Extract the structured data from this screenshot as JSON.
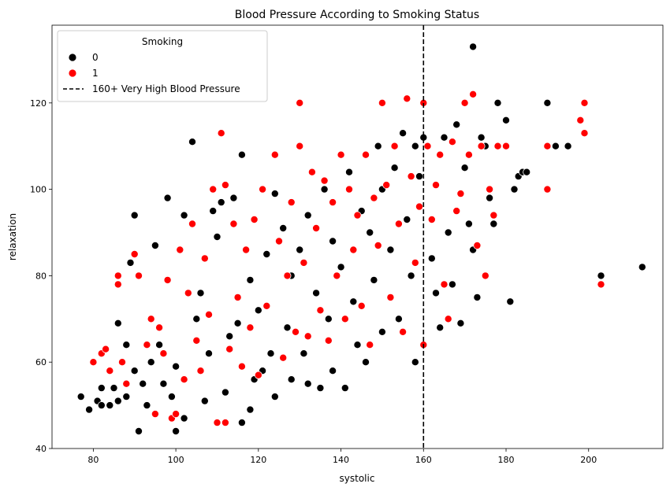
{
  "chart_data": {
    "type": "scatter",
    "title": "Blood Pressure According to Smoking Status",
    "xlabel": "systolic",
    "ylabel": "relaxation",
    "xlim": [
      70,
      218
    ],
    "ylim": [
      40,
      138
    ],
    "xticks": [
      80,
      100,
      120,
      140,
      160,
      180,
      200
    ],
    "yticks": [
      40,
      60,
      80,
      100,
      120
    ],
    "grid": false,
    "legend": {
      "title": "Smoking",
      "placement": "top-left",
      "entries": [
        {
          "label": "0",
          "marker": "circle",
          "color": "#000000"
        },
        {
          "label": "1",
          "marker": "circle",
          "color": "#ff0000"
        },
        {
          "label": "160+ Very High Blood Pressure",
          "marker": "dashed-line",
          "color": "#000000"
        }
      ]
    },
    "reference_line": {
      "axis": "x",
      "value": 160,
      "style": "dashed",
      "color": "#000000",
      "label": "160+ Very High Blood Pressure"
    },
    "series": [
      {
        "name": "0",
        "color": "#000000",
        "points": [
          [
            77,
            52
          ],
          [
            79,
            49
          ],
          [
            81,
            51
          ],
          [
            82,
            50
          ],
          [
            82,
            54
          ],
          [
            84,
            50
          ],
          [
            85,
            54
          ],
          [
            86,
            51
          ],
          [
            86,
            69
          ],
          [
            88,
            52
          ],
          [
            88,
            64
          ],
          [
            89,
            83
          ],
          [
            90,
            94
          ],
          [
            90,
            58
          ],
          [
            91,
            44
          ],
          [
            92,
            55
          ],
          [
            93,
            50
          ],
          [
            94,
            60
          ],
          [
            95,
            87
          ],
          [
            96,
            64
          ],
          [
            97,
            55
          ],
          [
            98,
            98
          ],
          [
            99,
            52
          ],
          [
            100,
            44
          ],
          [
            100,
            59
          ],
          [
            102,
            94
          ],
          [
            102,
            47
          ],
          [
            104,
            111
          ],
          [
            105,
            70
          ],
          [
            106,
            76
          ],
          [
            107,
            51
          ],
          [
            108,
            62
          ],
          [
            109,
            95
          ],
          [
            110,
            89
          ],
          [
            111,
            97
          ],
          [
            112,
            53
          ],
          [
            113,
            66
          ],
          [
            114,
            98
          ],
          [
            115,
            69
          ],
          [
            116,
            108
          ],
          [
            116,
            46
          ],
          [
            118,
            49
          ],
          [
            118,
            79
          ],
          [
            119,
            56
          ],
          [
            120,
            72
          ],
          [
            121,
            58
          ],
          [
            122,
            85
          ],
          [
            123,
            62
          ],
          [
            124,
            99
          ],
          [
            124,
            52
          ],
          [
            126,
            91
          ],
          [
            127,
            68
          ],
          [
            128,
            80
          ],
          [
            128,
            56
          ],
          [
            130,
            86
          ],
          [
            131,
            62
          ],
          [
            132,
            55
          ],
          [
            132,
            94
          ],
          [
            134,
            76
          ],
          [
            135,
            54
          ],
          [
            136,
            100
          ],
          [
            137,
            70
          ],
          [
            138,
            58
          ],
          [
            138,
            88
          ],
          [
            140,
            82
          ],
          [
            141,
            54
          ],
          [
            142,
            104
          ],
          [
            143,
            74
          ],
          [
            144,
            64
          ],
          [
            145,
            95
          ],
          [
            146,
            60
          ],
          [
            147,
            90
          ],
          [
            148,
            79
          ],
          [
            149,
            110
          ],
          [
            150,
            67
          ],
          [
            150,
            100
          ],
          [
            152,
            86
          ],
          [
            153,
            105
          ],
          [
            154,
            70
          ],
          [
            155,
            113
          ],
          [
            156,
            93
          ],
          [
            157,
            80
          ],
          [
            158,
            60
          ],
          [
            158,
            110
          ],
          [
            159,
            103
          ],
          [
            160,
            112
          ],
          [
            162,
            84
          ],
          [
            163,
            76
          ],
          [
            164,
            68
          ],
          [
            165,
            112
          ],
          [
            166,
            90
          ],
          [
            167,
            78
          ],
          [
            168,
            115
          ],
          [
            169,
            69
          ],
          [
            170,
            105
          ],
          [
            171,
            92
          ],
          [
            172,
            133
          ],
          [
            172,
            86
          ],
          [
            173,
            75
          ],
          [
            174,
            112
          ],
          [
            175,
            110
          ],
          [
            176,
            98
          ],
          [
            177,
            92
          ],
          [
            178,
            120
          ],
          [
            180,
            116
          ],
          [
            181,
            74
          ],
          [
            182,
            100
          ],
          [
            183,
            103
          ],
          [
            184,
            104
          ],
          [
            185,
            104
          ],
          [
            190,
            120
          ],
          [
            192,
            110
          ],
          [
            195,
            110
          ],
          [
            203,
            80
          ],
          [
            213,
            82
          ]
        ]
      },
      {
        "name": "1",
        "color": "#ff0000",
        "points": [
          [
            80,
            60
          ],
          [
            82,
            62
          ],
          [
            83,
            63
          ],
          [
            84,
            58
          ],
          [
            86,
            80
          ],
          [
            86,
            78
          ],
          [
            87,
            60
          ],
          [
            88,
            55
          ],
          [
            90,
            85
          ],
          [
            91,
            80
          ],
          [
            93,
            64
          ],
          [
            94,
            70
          ],
          [
            95,
            48
          ],
          [
            96,
            68
          ],
          [
            97,
            62
          ],
          [
            98,
            79
          ],
          [
            99,
            47
          ],
          [
            100,
            48
          ],
          [
            101,
            86
          ],
          [
            102,
            56
          ],
          [
            103,
            76
          ],
          [
            104,
            92
          ],
          [
            105,
            65
          ],
          [
            106,
            58
          ],
          [
            107,
            84
          ],
          [
            108,
            71
          ],
          [
            109,
            100
          ],
          [
            110,
            46
          ],
          [
            111,
            113
          ],
          [
            112,
            46
          ],
          [
            112,
            101
          ],
          [
            113,
            63
          ],
          [
            114,
            92
          ],
          [
            115,
            75
          ],
          [
            116,
            59
          ],
          [
            117,
            86
          ],
          [
            118,
            68
          ],
          [
            119,
            93
          ],
          [
            120,
            57
          ],
          [
            121,
            100
          ],
          [
            122,
            73
          ],
          [
            124,
            108
          ],
          [
            125,
            88
          ],
          [
            126,
            61
          ],
          [
            127,
            80
          ],
          [
            128,
            97
          ],
          [
            129,
            67
          ],
          [
            130,
            120
          ],
          [
            130,
            110
          ],
          [
            131,
            83
          ],
          [
            132,
            66
          ],
          [
            133,
            104
          ],
          [
            134,
            91
          ],
          [
            135,
            72
          ],
          [
            136,
            102
          ],
          [
            137,
            65
          ],
          [
            138,
            97
          ],
          [
            139,
            80
          ],
          [
            140,
            108
          ],
          [
            141,
            70
          ],
          [
            142,
            100
          ],
          [
            143,
            86
          ],
          [
            144,
            94
          ],
          [
            145,
            73
          ],
          [
            146,
            108
          ],
          [
            147,
            64
          ],
          [
            148,
            98
          ],
          [
            149,
            87
          ],
          [
            150,
            120
          ],
          [
            151,
            101
          ],
          [
            152,
            75
          ],
          [
            153,
            110
          ],
          [
            154,
            92
          ],
          [
            155,
            67
          ],
          [
            156,
            121
          ],
          [
            157,
            103
          ],
          [
            158,
            83
          ],
          [
            159,
            96
          ],
          [
            160,
            120
          ],
          [
            160,
            64
          ],
          [
            161,
            110
          ],
          [
            162,
            93
          ],
          [
            163,
            101
          ],
          [
            164,
            108
          ],
          [
            165,
            78
          ],
          [
            166,
            70
          ],
          [
            167,
            111
          ],
          [
            168,
            95
          ],
          [
            169,
            99
          ],
          [
            170,
            120
          ],
          [
            171,
            108
          ],
          [
            172,
            122
          ],
          [
            173,
            87
          ],
          [
            174,
            110
          ],
          [
            175,
            80
          ],
          [
            176,
            100
          ],
          [
            177,
            94
          ],
          [
            178,
            110
          ],
          [
            180,
            110
          ],
          [
            190,
            110
          ],
          [
            190,
            100
          ],
          [
            198,
            116
          ],
          [
            199,
            113
          ],
          [
            199,
            120
          ],
          [
            203,
            78
          ]
        ]
      }
    ]
  }
}
